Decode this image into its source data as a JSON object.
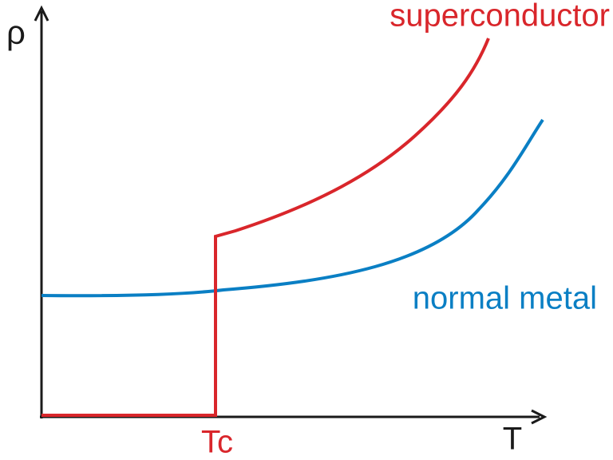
{
  "axes": {
    "y_label": "ρ",
    "x_label": "T",
    "critical_label": "Tc"
  },
  "curves": {
    "superconductor": "superconductor",
    "normal_metal": "normal metal"
  }
}
